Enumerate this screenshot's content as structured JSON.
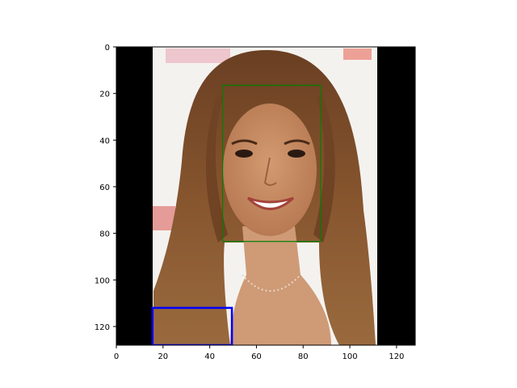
{
  "image": {
    "description_colors": {
      "padding": "#000000",
      "background": "#f4f2ef",
      "hair": "#7a4a27",
      "skin": "#c58a63"
    }
  },
  "chart_data": {
    "type": "image",
    "xlim": [
      0,
      128
    ],
    "ylim": [
      128,
      0
    ],
    "x_ticks": [
      0,
      20,
      40,
      60,
      80,
      100,
      120
    ],
    "y_ticks": [
      0,
      20,
      40,
      60,
      80,
      100,
      120
    ],
    "boxes": [
      {
        "x0": 45.5,
        "y0": 16.5,
        "x1": 87.5,
        "y1": 83.5,
        "color": "#008000"
      },
      {
        "x0": 15.5,
        "y0": 112,
        "x1": 49.5,
        "y1": 128,
        "color": "#0000ff"
      }
    ]
  }
}
